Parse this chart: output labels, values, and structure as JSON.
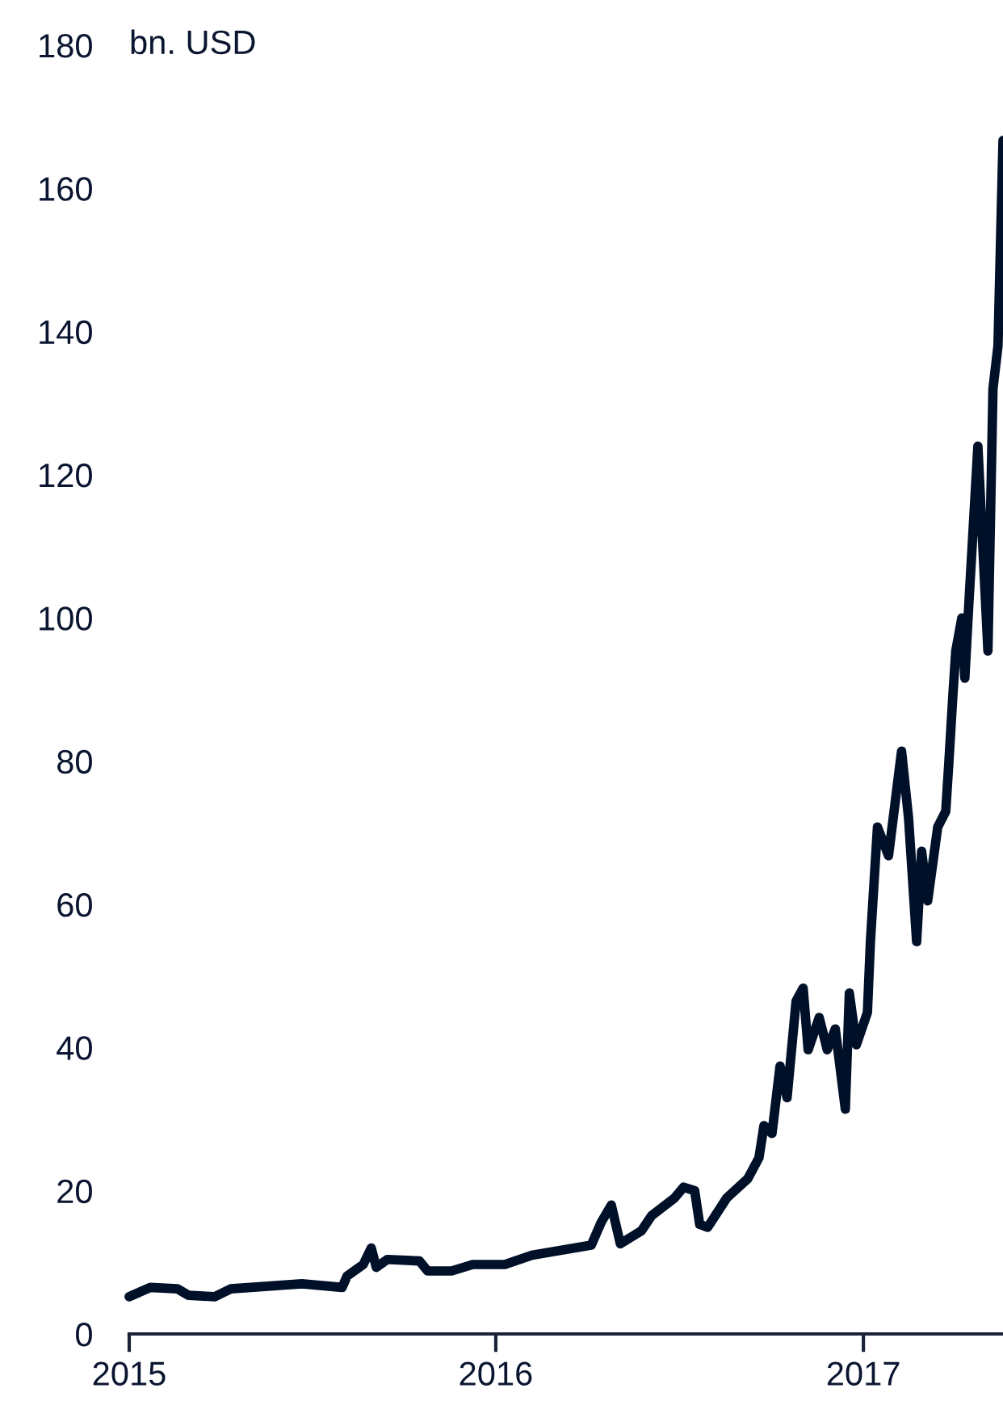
{
  "chart_data": {
    "type": "line",
    "ylabel": "bn. USD",
    "x": [
      "2015-01-01",
      "2015-01-22",
      "2015-02-18",
      "2015-03-01",
      "2015-03-27",
      "2015-04-12",
      "2015-06-22",
      "2015-08-01",
      "2015-08-06",
      "2015-08-22",
      "2015-08-30",
      "2015-09-04",
      "2015-09-15",
      "2015-10-17",
      "2015-10-25",
      "2015-11-18",
      "2015-12-09",
      "2016-01-10",
      "2016-02-06",
      "2016-04-05",
      "2016-04-15",
      "2016-04-25",
      "2016-05-04",
      "2016-05-25",
      "2016-06-04",
      "2016-06-27",
      "2016-07-06",
      "2016-07-17",
      "2016-07-22",
      "2016-07-30",
      "2016-08-18",
      "2016-09-08",
      "2016-09-19",
      "2016-09-24",
      "2016-10-02",
      "2016-10-10",
      "2016-10-17",
      "2016-10-26",
      "2016-11-02",
      "2016-11-07",
      "2016-11-18",
      "2016-11-26",
      "2016-12-04",
      "2016-12-14",
      "2016-12-18",
      "2016-12-25",
      "2017-01-05",
      "2017-01-08",
      "2017-01-15",
      "2017-01-26",
      "2017-02-08",
      "2017-02-15",
      "2017-02-23",
      "2017-02-28",
      "2017-03-06",
      "2017-03-16",
      "2017-03-24",
      "2017-03-27",
      "2017-03-31",
      "2017-04-03",
      "2017-04-09",
      "2017-04-12",
      "2017-04-16",
      "2017-04-25",
      "2017-05-05",
      "2017-05-10",
      "2017-05-15",
      "2017-05-20"
    ],
    "series": [
      {
        "color": "#001028",
        "values": [
          5.2,
          6.5,
          6.3,
          5.4,
          5.2,
          6.3,
          7.0,
          6.5,
          8.1,
          9.7,
          12,
          9.3,
          10.4,
          10.2,
          8.8,
          8.8,
          9.7,
          9.7,
          11,
          12.4,
          15.6,
          18,
          12.6,
          14.4,
          16.5,
          19,
          20.5,
          20,
          15.3,
          14.9,
          19,
          21.7,
          24.6,
          29.1,
          28,
          37.4,
          33,
          46.5,
          48.3,
          39.7,
          44.2,
          39.7,
          42.6,
          31.4,
          47.6,
          40.4,
          44.9,
          54.8,
          70.8,
          66.8,
          81.4,
          72,
          54.8,
          67.4,
          60.5,
          70.8,
          73,
          79.6,
          89,
          95.4,
          100,
          91.6,
          102,
          124,
          95.4,
          132,
          138,
          166.7
        ]
      }
    ],
    "xlim": [
      "2015-01-01",
      "2017-05-20"
    ],
    "xticks": [
      {
        "value": "2015-01-01",
        "label": "2015"
      },
      {
        "value": "2016-01-01",
        "label": "2016"
      },
      {
        "value": "2017-01-01",
        "label": "2017"
      }
    ],
    "ylim": [
      0,
      180
    ],
    "yticks": [
      0,
      20,
      40,
      60,
      80,
      100,
      120,
      140,
      160,
      180
    ],
    "grid": false,
    "marker": "none",
    "line_style": "solid"
  }
}
